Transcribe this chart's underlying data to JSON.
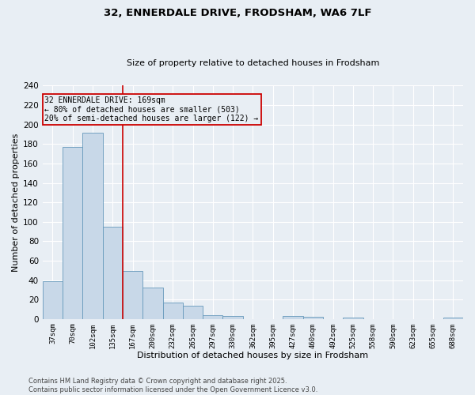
{
  "title1": "32, ENNERDALE DRIVE, FRODSHAM, WA6 7LF",
  "title2": "Size of property relative to detached houses in Frodsham",
  "xlabel": "Distribution of detached houses by size in Frodsham",
  "ylabel": "Number of detached properties",
  "categories": [
    "37sqm",
    "70sqm",
    "102sqm",
    "135sqm",
    "167sqm",
    "200sqm",
    "232sqm",
    "265sqm",
    "297sqm",
    "330sqm",
    "362sqm",
    "395sqm",
    "427sqm",
    "460sqm",
    "492sqm",
    "525sqm",
    "558sqm",
    "590sqm",
    "623sqm",
    "655sqm",
    "688sqm"
  ],
  "values": [
    39,
    177,
    192,
    95,
    49,
    32,
    17,
    14,
    4,
    3,
    0,
    0,
    3,
    2,
    0,
    1,
    0,
    0,
    0,
    0,
    1
  ],
  "bar_color": "#c8d8e8",
  "bar_edge_color": "#6699bb",
  "background_color": "#e8eef4",
  "grid_color": "#ffffff",
  "vline_index": 3,
  "vline_color": "#cc0000",
  "annotation_box_color": "#cc0000",
  "annotation_text_line1": "32 ENNERDALE DRIVE: 169sqm",
  "annotation_text_line2": "← 80% of detached houses are smaller (503)",
  "annotation_text_line3": "20% of semi-detached houses are larger (122) →",
  "footer_line1": "Contains HM Land Registry data © Crown copyright and database right 2025.",
  "footer_line2": "Contains public sector information licensed under the Open Government Licence v3.0.",
  "ylim": [
    0,
    240
  ],
  "yticks": [
    0,
    20,
    40,
    60,
    80,
    100,
    120,
    140,
    160,
    180,
    200,
    220,
    240
  ]
}
